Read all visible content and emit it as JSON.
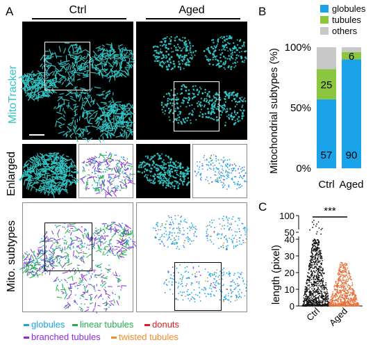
{
  "panels": {
    "a_letter": "A",
    "b_letter": "B",
    "c_letter": "C"
  },
  "columns": {
    "ctrl": "Ctrl",
    "aged": "Aged"
  },
  "row_labels": {
    "mitotracker": "MitoTracker",
    "enlarged": "Enlarged",
    "subtypes": "Mito. subtypes"
  },
  "legend": {
    "globules": "globules",
    "linear_tubules": "linear tubules",
    "donuts": "donuts",
    "branched_tubules": "branched tubules",
    "twisted_tubules": "twisted tubules"
  },
  "colors": {
    "cyan": "#2ec4c4",
    "globules": "#1aa3e8",
    "tubules": "#8cc63f",
    "others": "#c8c8c8",
    "linear": "#22b04a",
    "donuts": "#e01b1b",
    "branched": "#8a2be2",
    "twisted": "#f28c28",
    "ctrl_dots": "#111111",
    "aged_dots": "#e8703a"
  },
  "chart_data": [
    {
      "type": "bar",
      "stacked": true,
      "ylabel": "Mitochondrial subtypes (%)",
      "categories": [
        "Ctrl",
        "Aged"
      ],
      "yticks": [
        "0%",
        "50%",
        "100%"
      ],
      "ylim": [
        0,
        100
      ],
      "series": [
        {
          "name": "globules",
          "values": [
            57,
            90
          ],
          "labels": [
            "57",
            "90"
          ]
        },
        {
          "name": "tubules",
          "values": [
            25,
            6
          ],
          "labels": [
            "25",
            "6"
          ]
        },
        {
          "name": "others",
          "values": [
            18,
            4
          ],
          "labels": [
            "",
            ""
          ]
        }
      ],
      "legend_placement": "top-right"
    },
    {
      "type": "scatter",
      "ylabel": "length (pixel)",
      "categories": [
        "Ctrl",
        "Aged"
      ],
      "yticks": [
        "0",
        "10",
        "20",
        "30",
        "40",
        "50",
        "100"
      ],
      "y_axis_break": [
        50,
        90
      ],
      "annotation": "***"
    }
  ]
}
